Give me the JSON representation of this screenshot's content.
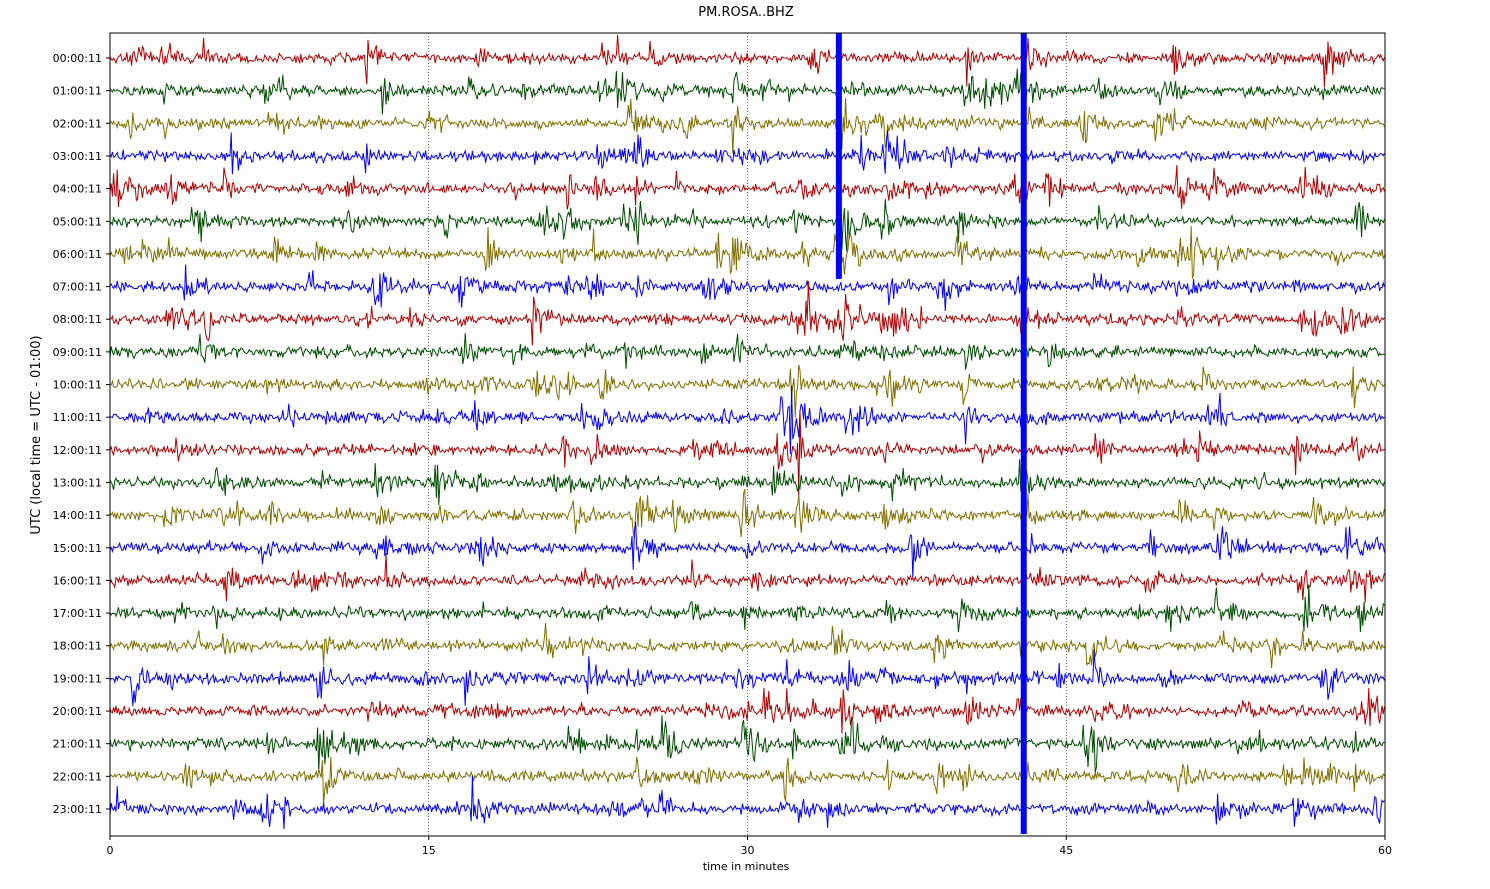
{
  "chart_data": {
    "type": "line",
    "title": "PM.ROSA..BHZ",
    "xlabel": "time in minutes",
    "ylabel": "UTC (local time = UTC - 01:00)",
    "xlim": [
      0,
      60
    ],
    "x_ticks": [
      0,
      15,
      30,
      45,
      60
    ],
    "vertical_gridlines_at": [
      15,
      30,
      45
    ],
    "row_labels": [
      "00:00:11",
      "01:00:11",
      "02:00:11",
      "03:00:11",
      "04:00:11",
      "05:00:11",
      "06:00:11",
      "07:00:11",
      "08:00:11",
      "09:00:11",
      "10:00:11",
      "11:00:11",
      "12:00:11",
      "13:00:11",
      "14:00:11",
      "15:00:11",
      "16:00:11",
      "17:00:11",
      "18:00:11",
      "19:00:11",
      "20:00:11",
      "21:00:11",
      "22:00:11",
      "23:00:11"
    ],
    "color_cycle": [
      "#b00000",
      "#004d00",
      "#807000",
      "#0000ff"
    ],
    "events_minutes": [
      2.8,
      7.5,
      12.3,
      17.0,
      21.5,
      23.0,
      24.5,
      29.5,
      32.0,
      34.2,
      36.5,
      40.0,
      42.5,
      43.0,
      46.2,
      50.0,
      52.0,
      56.0,
      58.5
    ],
    "major_events": [
      {
        "minute": 34.3,
        "rows": [
          0,
          6
        ]
      },
      {
        "minute": 43.0,
        "rows": [
          0,
          23
        ]
      }
    ]
  }
}
